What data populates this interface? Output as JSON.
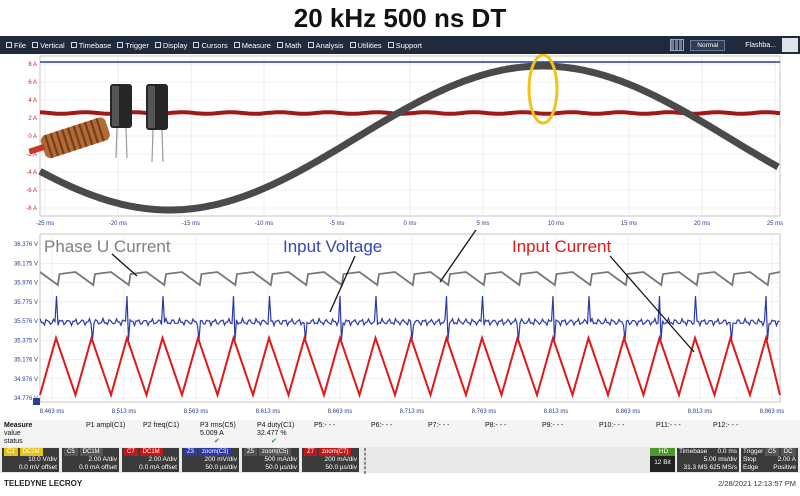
{
  "title": "20 kHz 500 ns DT",
  "menu": {
    "items": [
      {
        "label": "File",
        "icon": "file-icon"
      },
      {
        "label": "Vertical",
        "icon": "vertical-icon"
      },
      {
        "label": "Timebase",
        "icon": "timebase-icon"
      },
      {
        "label": "Trigger",
        "icon": "trigger-icon"
      },
      {
        "label": "Display",
        "icon": "display-icon"
      },
      {
        "label": "Cursors",
        "icon": "cursor-icon"
      },
      {
        "label": "Measure",
        "icon": "measure-icon"
      },
      {
        "label": "Math",
        "icon": "math-icon"
      },
      {
        "label": "Analysis",
        "icon": "analysis-icon"
      },
      {
        "label": "Utilities",
        "icon": "utilities-icon"
      },
      {
        "label": "Support",
        "icon": "support-icon"
      }
    ],
    "mode": "Normal",
    "flashback": "Flashba..."
  },
  "top_plot": {
    "y_ticks": [
      "8 A",
      "6 A",
      "4 A",
      "2 A",
      "0 A",
      "-2 A",
      "-4 A",
      "-6 A",
      "-8 A"
    ],
    "x_ticks": [
      "-25 ms",
      "-20 ms",
      "-15 ms",
      "-10 ms",
      "-5 ms",
      "0 ms",
      "5 ms",
      "10 ms",
      "15 ms",
      "20 ms",
      "25 ms"
    ],
    "colors": {
      "phase": "#4a4a4a",
      "dc": "#a01818",
      "top": "#2a3f8f"
    }
  },
  "bottom_plot": {
    "y_ticks": [
      "36.376 V",
      "36.175 V",
      "35.976 V",
      "35.775 V",
      "35.576 V",
      "35.375 V",
      "35.176 V",
      "34.976 V",
      "34.776 V"
    ],
    "x_ticks": [
      "8.463 ms",
      "8.513 ms",
      "8.563 ms",
      "8.613 ms",
      "8.663 ms",
      "8.713 ms",
      "8.763 ms",
      "8.813 ms",
      "8.863 ms",
      "8.913 ms",
      "8.963 ms"
    ],
    "annotations": {
      "phase": "Phase U Current",
      "voltage": "Input Voltage",
      "current": "Input Current"
    },
    "colors": {
      "phase": "#777777",
      "voltage": "#2b3aa8",
      "current": "#e01818"
    }
  },
  "measure": {
    "row_labels": [
      "Measure",
      "value",
      "status"
    ],
    "params": [
      {
        "name": "P1 ampl(C1)",
        "value": ""
      },
      {
        "name": "P2 freq(C1)",
        "value": ""
      },
      {
        "name": "P3 rms(C5)",
        "value": "5.009 A"
      },
      {
        "name": "P4 duty(C1)",
        "value": "32.477 %"
      },
      {
        "name": "P5:- - -",
        "value": ""
      },
      {
        "name": "P6:- - -",
        "value": ""
      },
      {
        "name": "P7:- - -",
        "value": ""
      },
      {
        "name": "P8:- - -",
        "value": ""
      },
      {
        "name": "P9:- - -",
        "value": ""
      },
      {
        "name": "P10:- - -",
        "value": ""
      },
      {
        "name": "P11:- - -",
        "value": ""
      },
      {
        "name": "P12:- - -",
        "value": ""
      }
    ]
  },
  "channels": [
    {
      "tags": [
        "C1",
        "DC1M"
      ],
      "tag_colors": [
        "#e3c51a",
        "#e3c51a"
      ],
      "scale": "10.0 V/div",
      "offset": "0.0 mV offset"
    },
    {
      "tags": [
        "C5",
        "DC1M"
      ],
      "tag_colors": [
        "#555555",
        "#555555"
      ],
      "scale": "2.00 A/div",
      "offset": "0.0 mA offset"
    },
    {
      "tags": [
        "C7",
        "DC1M"
      ],
      "tag_colors": [
        "#c01818",
        "#c01818"
      ],
      "scale": "2.00 A/div",
      "offset": "0.0 mA offset"
    },
    {
      "tags": [
        "Z3",
        "zoom(C3)"
      ],
      "tag_colors": [
        "#2b3aa8",
        "#2b3aa8"
      ],
      "scale": "200 mV/div",
      "offset": "50.0 µs/div"
    },
    {
      "tags": [
        "Z5",
        "zoom(C5)"
      ],
      "tag_colors": [
        "#555555",
        "#555555"
      ],
      "scale": "500 mA/div",
      "offset": "50.0 µs/div"
    },
    {
      "tags": [
        "Z7",
        "zoom(C7)"
      ],
      "tag_colors": [
        "#c01818",
        "#c01818"
      ],
      "scale": "200 mA/div",
      "offset": "50.0 µs/div"
    }
  ],
  "timebase": {
    "hd": "HD",
    "bits": "12 Bit",
    "label": "Timebase",
    "delay": "0.0 ms",
    "per_div": "5.00 ms/div",
    "samples": "31.3 MS",
    "rate": "625 MS/s",
    "trigger_label": "Trigger",
    "trigger_tags": [
      "C5",
      "DC"
    ],
    "mode": "Stop",
    "type": "Edge",
    "level": "2.00 A",
    "slope": "Positive"
  },
  "footer": {
    "brand": "TELEDYNE LECROY",
    "datetime": "2/28/2021 12:13:57 PM"
  }
}
